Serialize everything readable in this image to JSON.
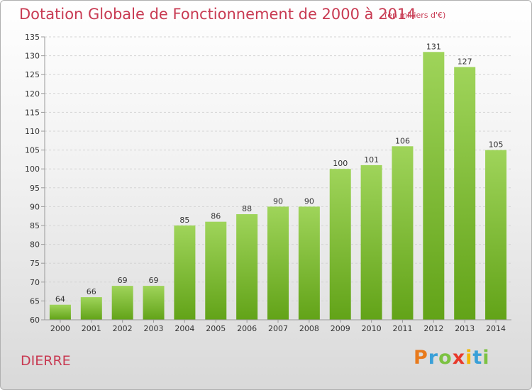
{
  "header": {
    "title": "Dotation Globale de Fonctionnement de 2000 à 2014",
    "subtitle": "(en milliers d'€)"
  },
  "footer": {
    "place": "DIERRE",
    "logo_text": "Proxiti",
    "logo_colors": [
      "#e87a1c",
      "#3aa0d8",
      "#7cc242",
      "#e8392a",
      "#f2b705",
      "#3aa0d8",
      "#7cc242"
    ]
  },
  "colors": {
    "accent": "#c83a52",
    "bar_light": "#9fd45a",
    "bar_dark": "#62a318",
    "axis": "#999999",
    "grid": "#d4d4d4",
    "text": "#333333"
  },
  "chart_data": {
    "type": "bar",
    "title": "Dotation Globale de Fonctionnement de 2000 à 2014",
    "subtitle": "(en milliers d'€)",
    "categories": [
      "2000",
      "2001",
      "2002",
      "2003",
      "2004",
      "2005",
      "2006",
      "2007",
      "2008",
      "2009",
      "2010",
      "2011",
      "2012",
      "2013",
      "2014"
    ],
    "values": [
      64,
      66,
      69,
      69,
      85,
      86,
      88,
      90,
      90,
      100,
      101,
      106,
      131,
      127,
      105
    ],
    "ylim": [
      60,
      135
    ],
    "yticks": [
      60,
      65,
      70,
      75,
      80,
      85,
      90,
      95,
      100,
      105,
      110,
      115,
      120,
      125,
      130,
      135
    ],
    "xlabel": "",
    "ylabel": "",
    "grid": "horizontal dashed",
    "data_labels": true
  }
}
